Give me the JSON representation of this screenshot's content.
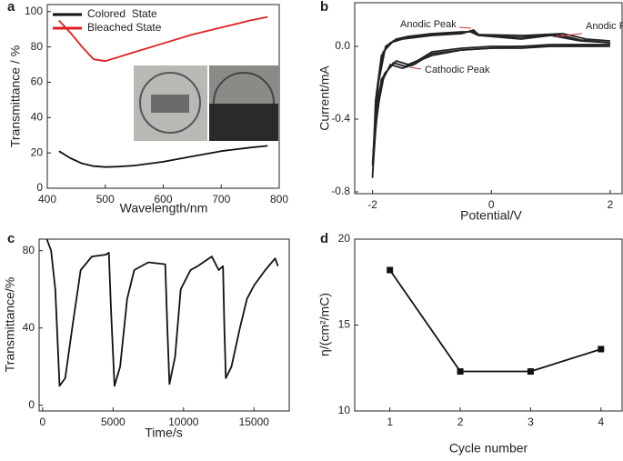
{
  "chart_data": [
    {
      "type": "line",
      "panel_label": "a",
      "x_label": "Wavelength/nm",
      "y_label": "Transmittance / %",
      "x": [
        420,
        440,
        460,
        480,
        500,
        520,
        550,
        600,
        650,
        700,
        750,
        780
      ],
      "series": [
        {
          "name": "Colored  State",
          "color": "#111111",
          "values": [
            21,
            17,
            14,
            12.5,
            12,
            12.2,
            12.8,
            15,
            18,
            21,
            23,
            24
          ]
        },
        {
          "name": "Bleached State",
          "color": "#e02020",
          "values": [
            95,
            88,
            80,
            73,
            72,
            74,
            77,
            82,
            87,
            91,
            95,
            97
          ]
        }
      ],
      "xlim": [
        400,
        800
      ],
      "xticks": [
        400,
        500,
        600,
        700,
        800
      ],
      "ylim": [
        0,
        104
      ],
      "yticks": [
        0,
        20,
        40,
        60,
        80,
        100
      ],
      "legend": "upper-left"
    },
    {
      "type": "line",
      "panel_label": "b",
      "x_label": "Potential/V",
      "y_label": "Current/mA",
      "series": [
        {
          "color": "#222222",
          "x": [
            2,
            1,
            0.5,
            0,
            -0.5,
            -1,
            -1.3,
            -1.5,
            -1.7,
            -1.85,
            -1.95,
            -2.0,
            -1.95,
            -1.85,
            -1.7,
            -1.5,
            -1,
            -0.5,
            -0.3,
            -0.2,
            0.5,
            1,
            1.5,
            2
          ],
          "values": [
            0.0,
            0.0,
            -0.01,
            -0.01,
            -0.02,
            -0.04,
            -0.1,
            -0.12,
            -0.1,
            -0.2,
            -0.45,
            -0.72,
            -0.3,
            -0.05,
            0.02,
            0.04,
            0.06,
            0.07,
            0.09,
            0.06,
            0.04,
            0.06,
            0.03,
            0.02
          ]
        },
        {
          "color": "#222222",
          "x": [
            2,
            1,
            0.5,
            0,
            -0.5,
            -1,
            -1.3,
            -1.45,
            -1.65,
            -1.85,
            -1.95,
            -2.0,
            -1.93,
            -1.82,
            -1.65,
            -1.45,
            -1,
            -0.5,
            -0.32,
            -0.22,
            0.5,
            1.1,
            1.5,
            2
          ],
          "values": [
            0.01,
            0.0,
            0.0,
            -0.01,
            -0.02,
            -0.05,
            -0.09,
            -0.11,
            -0.09,
            -0.18,
            -0.4,
            -0.65,
            -0.25,
            -0.03,
            0.03,
            0.05,
            0.065,
            0.075,
            0.085,
            0.06,
            0.05,
            0.065,
            0.035,
            0.02
          ]
        },
        {
          "color": "#222222",
          "x": [
            2,
            1,
            0.5,
            0,
            -0.5,
            -1,
            -1.25,
            -1.4,
            -1.6,
            -1.8,
            -1.92,
            -1.98,
            -1.9,
            -1.78,
            -1.6,
            -1.4,
            -1,
            -0.5,
            -0.35,
            -0.25,
            0.55,
            1.2,
            1.6,
            2
          ],
          "values": [
            0.01,
            0.01,
            0.0,
            0.0,
            -0.01,
            -0.03,
            -0.08,
            -0.1,
            -0.08,
            -0.15,
            -0.35,
            -0.6,
            -0.2,
            0.0,
            0.04,
            0.055,
            0.07,
            0.08,
            0.08,
            0.065,
            0.06,
            0.07,
            0.04,
            0.03
          ]
        }
      ],
      "annotations": [
        {
          "text": "Anodic Peak"
        },
        {
          "text": "Anodic Peak"
        },
        {
          "text": "Cathodic Peak"
        }
      ],
      "xlim": [
        -2.3,
        2.2
      ],
      "xticks": [
        -2,
        0,
        2
      ],
      "ylim": [
        -0.81,
        0.24
      ],
      "yticks": [
        {
          "value": 0,
          "label": "0.0"
        },
        -0.4,
        -0.8
      ]
    },
    {
      "type": "line",
      "panel_label": "c",
      "x_label": "Time/s",
      "y_label": "Transmittance/%",
      "x": [
        0,
        300,
        600,
        900,
        1200,
        1600,
        2100,
        2700,
        3500,
        4500,
        4700,
        4850,
        5100,
        5500,
        6000,
        6500,
        7500,
        8700,
        8850,
        9000,
        9400,
        9800,
        10500,
        11000,
        12000,
        12500,
        12800,
        12900,
        13000,
        13400,
        14000,
        14500,
        15000,
        15800,
        16500,
        16700
      ],
      "series": [
        {
          "color": "#111111",
          "values": [
            100,
            86,
            80,
            60,
            10,
            14,
            40,
            70,
            77,
            78,
            79,
            50,
            10,
            20,
            55,
            70,
            74,
            73,
            40,
            11,
            25,
            60,
            70,
            72,
            77,
            70,
            72,
            40,
            14,
            20,
            40,
            55,
            62,
            70,
            76,
            72
          ]
        }
      ],
      "xlim": [
        -250,
        17500
      ],
      "xticks": [
        0,
        5000,
        10000,
        15000
      ],
      "ylim": [
        -3,
        86
      ],
      "yticks": [
        0,
        40,
        80
      ]
    },
    {
      "type": "line",
      "panel_label": "d",
      "x_label": "Cycle number",
      "y_label": "η/(cm²/mC)",
      "marker": "square",
      "x": [
        1,
        2,
        3,
        4
      ],
      "series": [
        {
          "color": "#111111",
          "values": [
            18.2,
            12.3,
            12.3,
            13.6
          ]
        }
      ],
      "xlim": [
        0.5,
        4.3
      ],
      "xticks": [
        1,
        2,
        3,
        4
      ],
      "ylim": [
        10,
        20
      ],
      "yticks": [
        10,
        15,
        20
      ]
    }
  ]
}
